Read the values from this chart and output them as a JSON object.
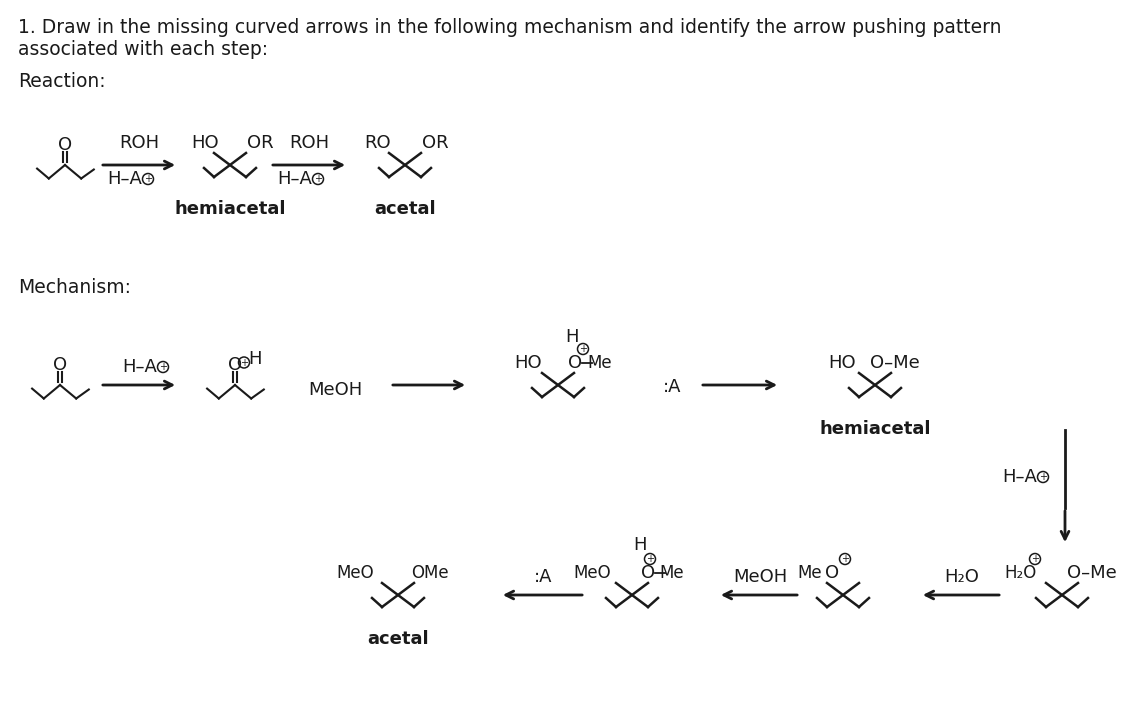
{
  "title_line1": "1. Draw in the missing curved arrows in the following mechanism and identify the arrow pushing pattern",
  "title_line2": "associated with each step:",
  "reaction_label": "Reaction:",
  "mechanism_label": "Mechanism:",
  "bg_color": "#ffffff",
  "text_color": "#1a1a1a",
  "fs_title": 13.5,
  "fs_label": 13.5,
  "fs_chem": 13,
  "fs_small": 11
}
